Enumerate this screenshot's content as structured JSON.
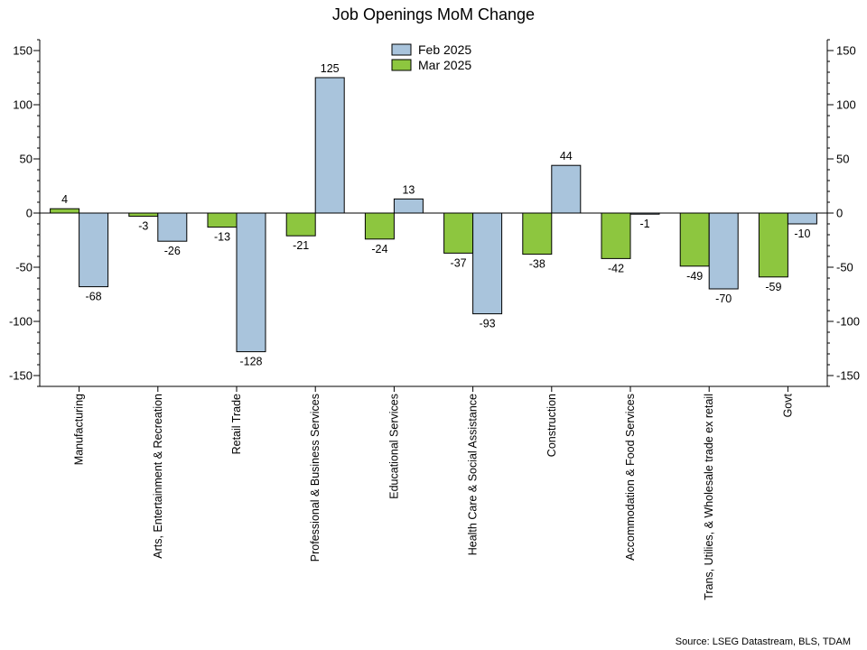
{
  "chart_data": {
    "type": "bar",
    "title": "Job Openings MoM Change",
    "source": "Source: LSEG Datastream, BLS, TDAM",
    "xlabel": "",
    "ylabel": "",
    "ylim": [
      -160,
      160
    ],
    "yticks": [
      -150,
      -100,
      -50,
      0,
      50,
      100,
      150
    ],
    "grid": false,
    "legend_position": "top-center",
    "categories": [
      "Manufacturing",
      "Arts, Entertainment & Recreation",
      "Retail Trade",
      "Professional & Business Services",
      "Educational Services",
      "Health Care & Social Assistance",
      "Construction",
      "Accommodation & Food Services",
      "Trans, Utilies, & Wholesale trade ex retail",
      "Govt"
    ],
    "series": [
      {
        "name": "Mar 2025",
        "color": "#8dc63f",
        "values": [
          4,
          -3,
          -13,
          -21,
          -24,
          -37,
          -38,
          -42,
          -49,
          -59
        ]
      },
      {
        "name": "Feb 2025",
        "color": "#a9c4dc",
        "values": [
          -68,
          -26,
          -128,
          125,
          13,
          -93,
          44,
          -1,
          -70,
          -10
        ]
      }
    ],
    "legend_order": [
      "Feb 2025",
      "Mar 2025"
    ]
  }
}
